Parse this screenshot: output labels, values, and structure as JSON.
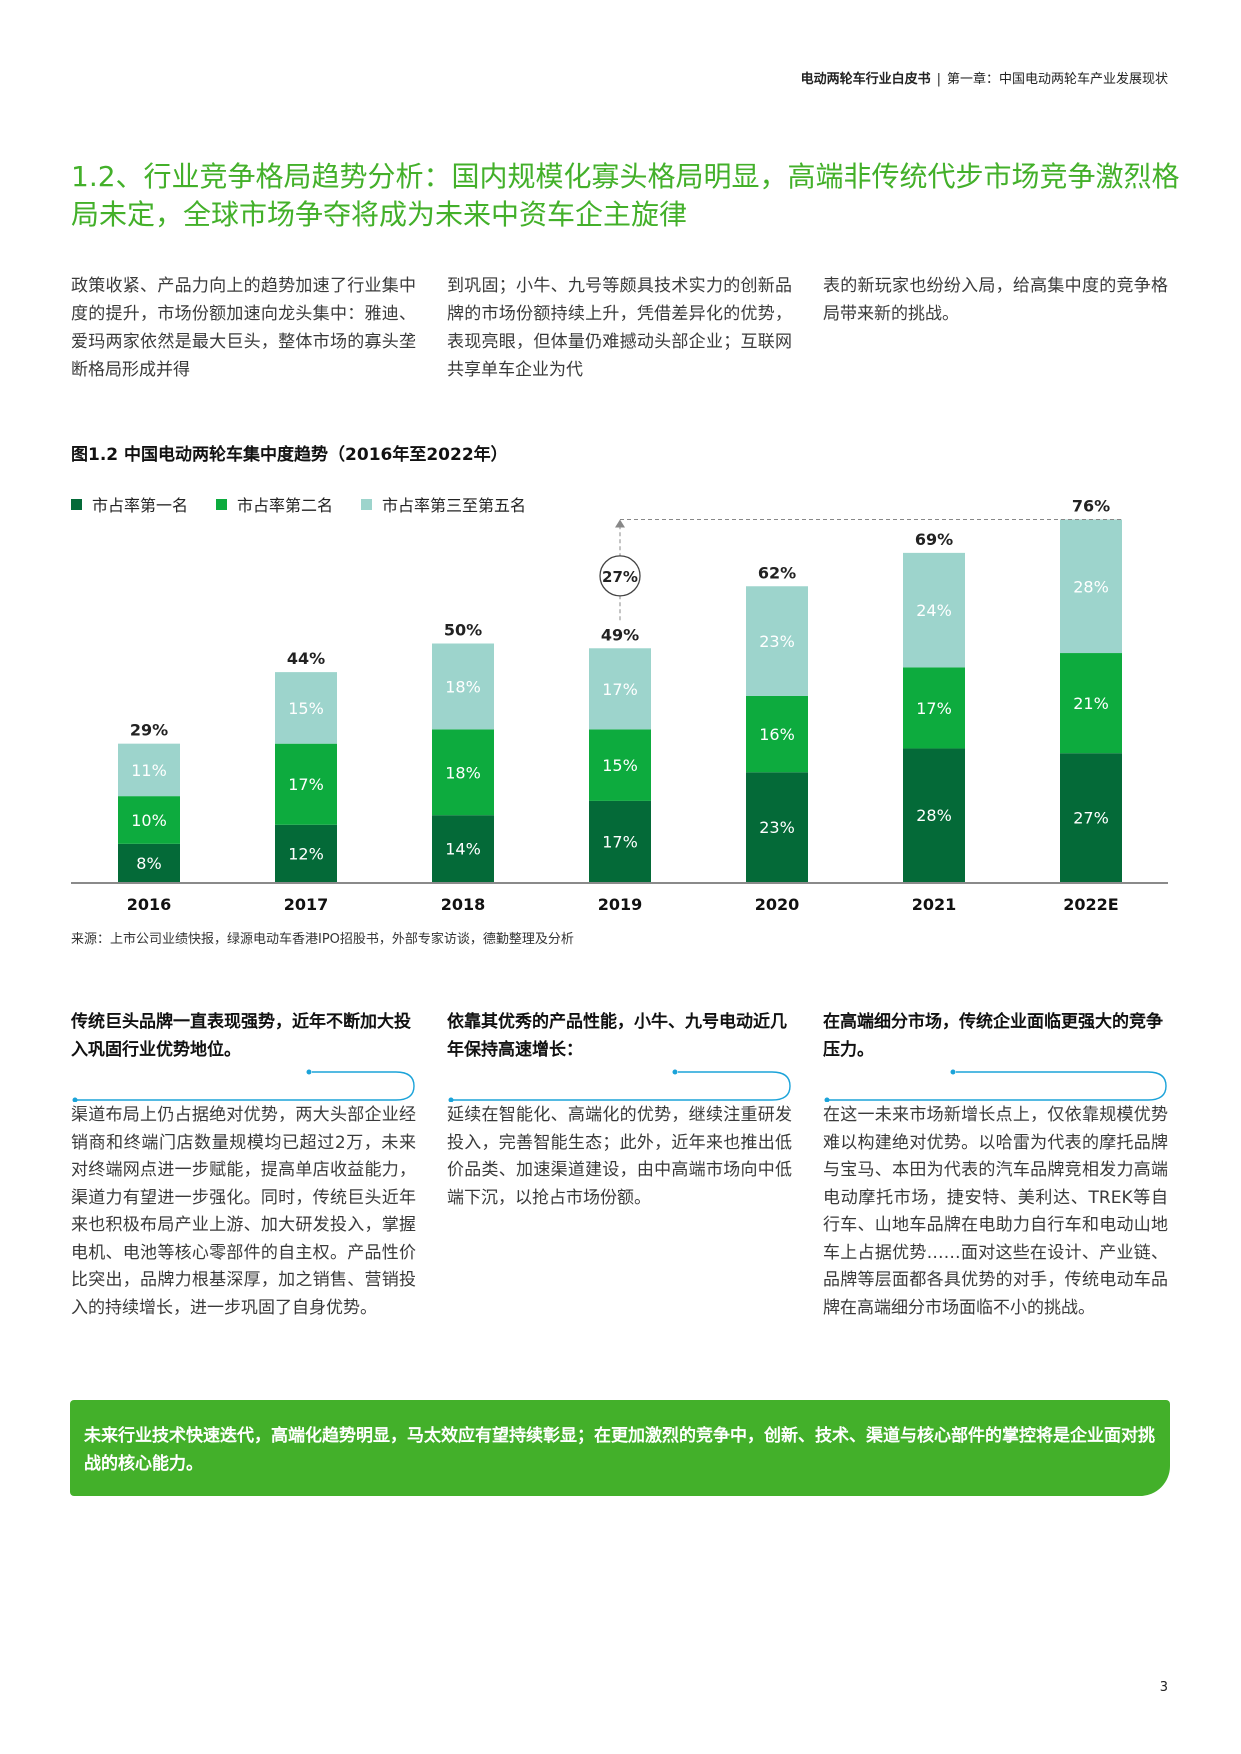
{
  "header": {
    "doc_title": "电动两轮车行业白皮书",
    "separator": "|",
    "chapter": "第一章：中国电动两轮车产业发展现状"
  },
  "section_title": "1.2、行业竞争格局趋势分析：国内规模化寡头格局明显，高端非传统代步市场竞争激烈格局未定，全球市场争夺将成为未来中资车企主旋律",
  "intro": {
    "col1": "政策收紧、产品力向上的趋势加速了行业集中度的提升，市场份额加速向龙头集中：雅迪、爱玛两家依然是最大巨头，整体市场的寡头垄断格局形成并得",
    "col2": "到巩固；小牛、九号等颇具技术实力的创新品牌的市场份额持续上升，凭借差异化的优势，表现亮眼，但体量仍难撼动头部企业；互联网共享单车企业为代",
    "col3": "表的新玩家也纷纷入局，给高集中度的竞争格局带来新的挑战。"
  },
  "figure_title": "图1.2  中国电动两轮车集中度趋势（2016年至2022年）",
  "legend": [
    {
      "label": "市占率第一名",
      "color": "#046a38"
    },
    {
      "label": "市占率第二名",
      "color": "#0dab3e"
    },
    {
      "label": "市占率第三至第五名",
      "color": "#9dd4cc"
    }
  ],
  "chart_data": {
    "type": "bar",
    "stacked": true,
    "categories": [
      "2016",
      "2017",
      "2018",
      "2019",
      "2020",
      "2021",
      "2022E"
    ],
    "series": [
      {
        "name": "市占率第一名",
        "values": [
          8,
          12,
          14,
          17,
          23,
          28,
          27
        ],
        "labels": [
          "8%",
          "12%",
          "14%",
          "17%",
          "23%",
          "28%",
          "27%"
        ]
      },
      {
        "name": "市占率第二名",
        "values": [
          10,
          17,
          18,
          15,
          16,
          17,
          21
        ],
        "labels": [
          "10%",
          "17%",
          "18%",
          "15%",
          "16%",
          "17%",
          "21%"
        ]
      },
      {
        "name": "市占率第三至第五名",
        "values": [
          11,
          15,
          18,
          17,
          23,
          24,
          28
        ],
        "labels": [
          "11%",
          "15%",
          "18%",
          "17%",
          "23%",
          "24%",
          "28%"
        ]
      }
    ],
    "totals": [
      "29%",
      "44%",
      "50%",
      "49%",
      "62%",
      "69%",
      "76%"
    ],
    "annotation": {
      "label": "27%",
      "from_category": "2019",
      "to_category": "2022E"
    },
    "colors": [
      "#046a38",
      "#0dab3e",
      "#9dd4cc"
    ],
    "ylim": [
      0,
      76
    ],
    "grid": false
  },
  "source": "来源：上市公司业绩快报，绿源电动车香港IPO招股书，外部专家访谈，德勤整理及分析",
  "columns": [
    {
      "heading": "传统巨头品牌一直表现强势，近年不断加大投入巩固行业优势地位。",
      "body": "渠道布局上仍占据绝对优势，两大头部企业经销商和终端门店数量规模均已超过2万，未来对终端网点进一步赋能，提高单店收益能力，渠道力有望进一步强化。同时，传统巨头近年来也积极布局产业上游、加大研发投入，掌握电机、电池等核心零部件的自主权。产品性价比突出，品牌力根基深厚，加之销售、营销投入的持续增长，进一步巩固了自身优势。"
    },
    {
      "heading": "依靠其优秀的产品性能，小牛、九号电动近几年保持高速增长：",
      "body": "延续在智能化、高端化的优势，继续注重研发投入，完善智能生态；此外，近年来也推出低价品类、加速渠道建设，由中高端市场向中低端下沉，以抢占市场份额。"
    },
    {
      "heading": "在高端细分市场，传统企业面临更强大的竞争压力。",
      "body": "在这一未来市场新增长点上，仅依靠规模优势难以构建绝对优势。以哈雷为代表的摩托品牌与宝马、本田为代表的汽车品牌竞相发力高端电动摩托市场，捷安特、美利达、TREK等自行车、山地车品牌在电助力自行车和电动山地车上占据优势……面对这些在设计、产业链、品牌等层面都各具优势的对手，传统电动车品牌在高端细分市场面临不小的挑战。"
    }
  ],
  "banner": "未来行业技术快速迭代，高端化趋势明显，马太效应有望持续彰显；在更加激烈的竞争中，创新、技术、渠道与核心部件的掌控将是企业面对挑战的核心能力。",
  "page_number": "3",
  "colors": {
    "accent_green": "#43b02a",
    "dark_green": "#046a38",
    "mid_green": "#0dab3e",
    "light_teal": "#9dd4cc",
    "deco_blue": "#1ba3d9"
  }
}
